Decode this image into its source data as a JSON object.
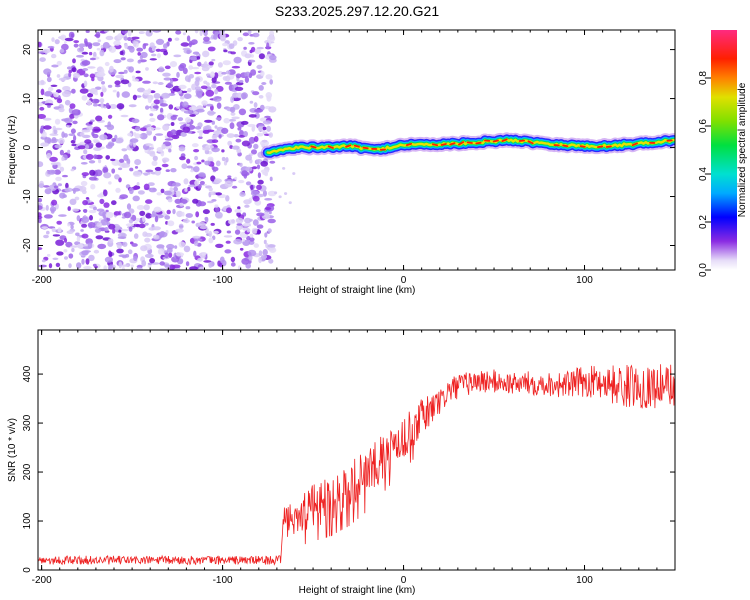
{
  "chart_data": [
    {
      "type": "heatmap",
      "title": "S233.2025.297.12.20.G21",
      "xlabel": "Height of straight line (km)",
      "ylabel": "Frequency (Hz)",
      "xlim": [
        -202,
        150
      ],
      "ylim": [
        -25,
        24
      ],
      "xticks": [
        -200,
        -100,
        0,
        100
      ],
      "xtick_labels": [
        "-200",
        "-100",
        "0",
        "100"
      ],
      "yticks": [
        -20,
        -10,
        0,
        10,
        20
      ],
      "ytick_labels": [
        "-20",
        "-10",
        "0",
        "10",
        "20"
      ],
      "noise_region_x": [
        -202,
        -72
      ],
      "ridge_x": [
        -75,
        -60,
        -45,
        -30,
        -15,
        0,
        15,
        30,
        45,
        60,
        75,
        90,
        105,
        120,
        135,
        150
      ],
      "ridge_freq": [
        -1.0,
        0.0,
        0.0,
        0.3,
        -0.5,
        0.6,
        0.6,
        0.8,
        1.2,
        1.5,
        1.0,
        0.5,
        0.2,
        0.5,
        1.0,
        1.5
      ],
      "colorbar": {
        "label": "Normalized spectral amplitude",
        "range": [
          0.0,
          1.0
        ],
        "ticks": [
          0.0,
          0.2,
          0.4,
          0.6,
          0.8
        ],
        "tick_labels": [
          "0.0",
          "0.2",
          "0.4",
          "0.6",
          "0.8"
        ]
      }
    },
    {
      "type": "line",
      "xlabel": "Height of straight line (km)",
      "ylabel": "SNR (10 * v/v)",
      "xlim": [
        -202,
        150
      ],
      "ylim": [
        0,
        490
      ],
      "xticks": [
        -200,
        -100,
        0,
        100
      ],
      "xtick_labels": [
        "-200",
        "-100",
        "0",
        "100"
      ],
      "yticks": [
        0,
        100,
        200,
        300,
        400
      ],
      "ytick_labels": [
        "0",
        "100",
        "200",
        "300",
        "400"
      ],
      "series": [
        {
          "name": "SNR",
          "color": "#ee2222",
          "x": [
            -202,
            -150,
            -100,
            -68,
            -66,
            -60,
            -50,
            -40,
            -30,
            -20,
            -10,
            0,
            10,
            20,
            25,
            30,
            40,
            50,
            60,
            70,
            80,
            90,
            100,
            110,
            120,
            130,
            140,
            150
          ],
          "y": [
            20,
            20,
            20,
            20,
            95,
            110,
            130,
            150,
            170,
            200,
            235,
            270,
            310,
            345,
            365,
            375,
            385,
            385,
            380,
            382,
            380,
            378,
            385,
            385,
            375,
            375,
            375,
            380
          ],
          "noise": [
            9,
            9,
            9,
            9,
            40,
            40,
            45,
            50,
            50,
            50,
            45,
            42,
            40,
            30,
            28,
            25,
            25,
            25,
            22,
            25,
            25,
            28,
            32,
            35,
            45,
            45,
            45,
            45
          ]
        }
      ]
    }
  ]
}
